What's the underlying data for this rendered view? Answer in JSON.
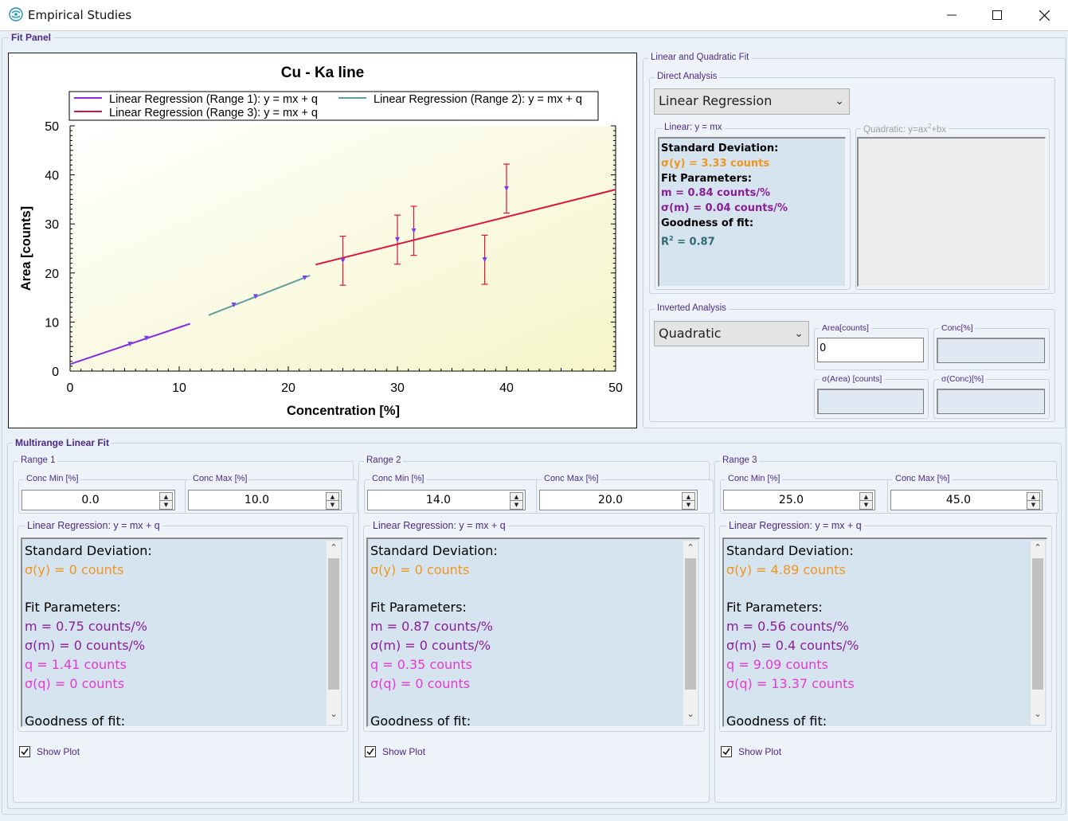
{
  "window": {
    "title": "Empirical Studies"
  },
  "fit_panel": {
    "label": "Fit Panel"
  },
  "chart_data": {
    "type": "scatter",
    "title": "Cu - Ka line",
    "xlabel": "Concentration [%]",
    "ylabel": "Area [counts]",
    "xlim": [
      0,
      50
    ],
    "ylim": [
      0,
      50
    ],
    "x_ticks": [
      "0",
      "10",
      "20",
      "30",
      "40",
      "50"
    ],
    "y_ticks": [
      "0",
      "10",
      "20",
      "30",
      "40",
      "50"
    ],
    "grid": false,
    "legend_position": "top",
    "legend": [
      {
        "label": "Linear Regression (Range 1): y = mx + q",
        "color": "#8a2be2"
      },
      {
        "label": "Linear Regression (Range 2): y = mx + q",
        "color": "#5f9ea0"
      },
      {
        "label": "Linear Regression (Range 3): y = mx + q",
        "color": "#dc143c"
      }
    ],
    "points": [
      {
        "x": 5.5,
        "y": 5.5
      },
      {
        "x": 7,
        "y": 6.7
      },
      {
        "x": 15,
        "y": 13.5
      },
      {
        "x": 17,
        "y": 15.2
      },
      {
        "x": 21.5,
        "y": 19
      },
      {
        "x": 25,
        "y": 22.5,
        "err": 5
      },
      {
        "x": 30,
        "y": 26.8,
        "err": 5
      },
      {
        "x": 31.5,
        "y": 28.6,
        "err": 5
      },
      {
        "x": 38,
        "y": 22.7,
        "err": 5
      },
      {
        "x": 40,
        "y": 37.2,
        "err": 5
      }
    ],
    "lines": [
      {
        "x1": 0,
        "y1": 1.41,
        "x2": 11,
        "y2": 9.66,
        "color": "#8a2be2"
      },
      {
        "x1": 12.7,
        "y1": 11.4,
        "x2": 22,
        "y2": 19.5,
        "color": "#5f9ea0"
      },
      {
        "x1": 22.5,
        "y1": 21.7,
        "x2": 50,
        "y2": 37,
        "color": "#dc143c"
      }
    ],
    "plot_bg_colors": [
      "#ffffff",
      "#f5f5c8"
    ]
  },
  "linear_quadratic": {
    "label": "Linear and Quadratic Fit",
    "direct": {
      "label": "Direct Analysis",
      "dropdown": "Linear Regression",
      "linear_label": "Linear:  y = mx",
      "quadratic_label": "Quadratic: y=ax",
      "quadratic_sup": "2",
      "quadratic_rest": "+bx",
      "lines": {
        "sd_title": "Standard Deviation:",
        "sigma_y": "σ(y) = 3.33 counts",
        "fp_title": "Fit Parameters:",
        "m": "m = 0.84 counts/%",
        "sigma_m": "σ(m) = 0.04 counts/%",
        "gof_title": "Goodness of fit:",
        "r2_r": "R",
        "r2_sup": "2",
        "r2_val": " = 0.87"
      }
    },
    "inverted": {
      "label": "Inverted Analysis",
      "dropdown": "Quadratic",
      "area_label": "Area[counts]",
      "area_value": "0",
      "conc_label": "Conc[%]",
      "sigma_area_label": "σ(Area) [counts]",
      "sigma_conc_label": "σ(Conc)[%]"
    }
  },
  "multirange": {
    "label": "Multirange Linear Fit",
    "ranges": [
      {
        "label": "Range 1",
        "conc_min_label": "Conc Min [%]",
        "conc_min": "0.0",
        "conc_max_label": "Conc Max [%]",
        "conc_max": "10.0",
        "reg_label": "Linear Regression: y = mx + q",
        "sd_title": "Standard Deviation:",
        "sigma_y": "σ(y) = 0 counts",
        "fp_title": "Fit Parameters:",
        "m": "m = 0.75 counts/%",
        "sigma_m": "σ(m) = 0 counts/%",
        "q": "q = 1.41 counts",
        "sigma_q": "σ(q) = 0 counts",
        "gof_title": "Goodness of fit:",
        "show_plot": "Show Plot"
      },
      {
        "label": "Range 2",
        "conc_min_label": "Conc Min [%]",
        "conc_min": "14.0",
        "conc_max_label": "Conc Max [%]",
        "conc_max": "20.0",
        "reg_label": "Linear Regression: y = mx + q",
        "sd_title": "Standard Deviation:",
        "sigma_y": "σ(y) = 0 counts",
        "fp_title": "Fit Parameters:",
        "m": "m = 0.87 counts/%",
        "sigma_m": "σ(m) = 0 counts/%",
        "q": "q = 0.35 counts",
        "sigma_q": "σ(q) = 0 counts",
        "gof_title": "Goodness of fit:",
        "show_plot": "Show Plot"
      },
      {
        "label": "Range 3",
        "conc_min_label": "Conc Min [%]",
        "conc_min": "25.0",
        "conc_max_label": "Conc Max [%]",
        "conc_max": "45.0",
        "reg_label": "Linear Regression: y = mx + q",
        "sd_title": "Standard Deviation:",
        "sigma_y": "σ(y) = 4.89 counts",
        "fp_title": "Fit Parameters:",
        "m": "m = 0.56 counts/%",
        "sigma_m": "σ(m) = 0.4 counts/%",
        "q": "q = 9.09 counts",
        "sigma_q": "σ(q) = 13.37 counts",
        "gof_title": "Goodness of fit:",
        "show_plot": "Show Plot"
      }
    ]
  }
}
